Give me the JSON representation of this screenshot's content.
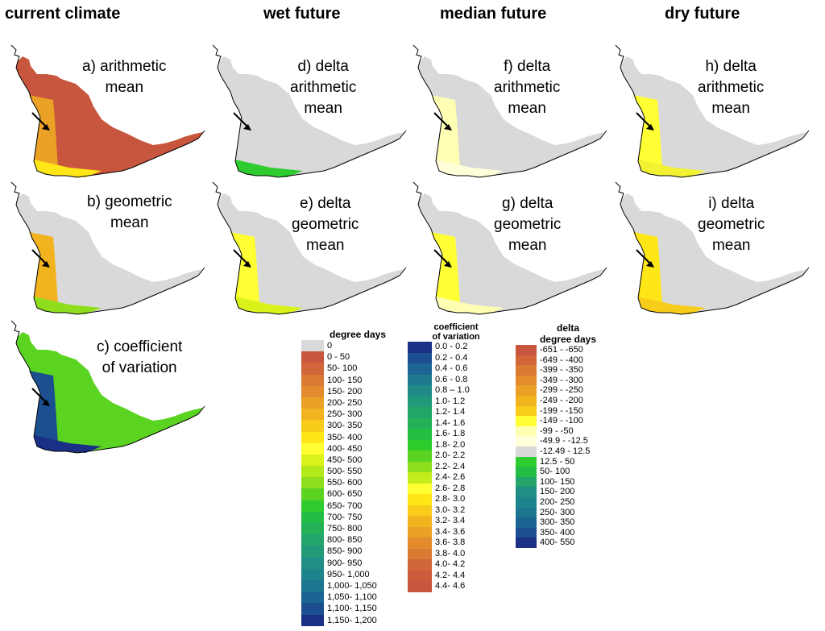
{
  "columns": [
    "current climate",
    "wet future",
    "median future",
    "dry future"
  ],
  "panels": [
    {
      "id": "a",
      "lines": [
        "a) arithmetic",
        "mean"
      ],
      "fill": "dd-full"
    },
    {
      "id": "b",
      "lines": [
        "b) geometric",
        "mean"
      ],
      "fill": "dd-west"
    },
    {
      "id": "c",
      "lines": [
        "c) coefficient",
        "of variation"
      ],
      "fill": "cv-full"
    },
    {
      "id": "d",
      "lines": [
        "d) delta",
        "arithmetic",
        "mean"
      ],
      "fill": "wet-arith"
    },
    {
      "id": "e",
      "lines": [
        "e) delta",
        "geometric",
        "mean"
      ],
      "fill": "wet-geo"
    },
    {
      "id": "f",
      "lines": [
        "f) delta",
        "arithmetic",
        "mean"
      ],
      "fill": "med-arith"
    },
    {
      "id": "g",
      "lines": [
        "g) delta",
        "geometric",
        "mean"
      ],
      "fill": "med-geo"
    },
    {
      "id": "h",
      "lines": [
        "h) delta",
        "arithmetic",
        "mean"
      ],
      "fill": "dry-arith"
    },
    {
      "id": "i",
      "lines": [
        "i) delta",
        "geometric",
        "mean"
      ],
      "fill": "dry-geo"
    }
  ],
  "legend_degree_days": {
    "title": [
      "degree days"
    ],
    "items": [
      {
        "label": "0",
        "color": "#d9d9d9"
      },
      {
        "label": "0 - 50",
        "color": "#c8553d"
      },
      {
        "label": "50- 100",
        "color": "#d0663a"
      },
      {
        "label": "100- 150",
        "color": "#db7a33"
      },
      {
        "label": "150- 200",
        "color": "#e38b2d"
      },
      {
        "label": "200- 250",
        "color": "#eba026"
      },
      {
        "label": "250- 300",
        "color": "#f2b41e"
      },
      {
        "label": "300- 350",
        "color": "#f8cc1a"
      },
      {
        "label": "350- 400",
        "color": "#ffe617"
      },
      {
        "label": "400- 450",
        "color": "#ffff33"
      },
      {
        "label": "450- 500",
        "color": "#d9f21a"
      },
      {
        "label": "500- 550",
        "color": "#b3e81c"
      },
      {
        "label": "550- 600",
        "color": "#8ede1e"
      },
      {
        "label": "600- 650",
        "color": "#5ad421"
      },
      {
        "label": "650- 700",
        "color": "#2fcc2f"
      },
      {
        "label": "700- 750",
        "color": "#23bd45"
      },
      {
        "label": "750- 800",
        "color": "#22b058"
      },
      {
        "label": "800- 850",
        "color": "#22a46a"
      },
      {
        "label": "850- 900",
        "color": "#219a7a"
      },
      {
        "label": "900- 950",
        "color": "#1f8f86"
      },
      {
        "label": "950- 1,000",
        "color": "#1e848b"
      },
      {
        "label": "1,000- 1,050",
        "color": "#1d7690"
      },
      {
        "label": "1,050- 1,100",
        "color": "#1c6592"
      },
      {
        "label": "1,100- 1,150",
        "color": "#1c4f8f"
      },
      {
        "label": "1,150- 1,200",
        "color": "#1a2f86"
      }
    ]
  },
  "legend_cv": {
    "title": [
      "coefficient",
      "of variation"
    ],
    "items": [
      {
        "label": "0.0 - 0.2",
        "color": "#1a2f86"
      },
      {
        "label": "0.2 - 0.4",
        "color": "#1c4f8f"
      },
      {
        "label": "0.4 - 0.6",
        "color": "#1d6592"
      },
      {
        "label": "0.6 - 0.8",
        "color": "#1e7a8e"
      },
      {
        "label": "0.8 – 1.0",
        "color": "#1f8a86"
      },
      {
        "label": "1.0- 1.2",
        "color": "#209a78"
      },
      {
        "label": "1.2- 1.4",
        "color": "#21a668"
      },
      {
        "label": "1.4- 1.6",
        "color": "#22b255"
      },
      {
        "label": "1.6- 1.8",
        "color": "#24bf41"
      },
      {
        "label": "1.8- 2.0",
        "color": "#2dcc2d"
      },
      {
        "label": "2.0- 2.2",
        "color": "#5ad421"
      },
      {
        "label": "2.2- 2.4",
        "color": "#8ede1e"
      },
      {
        "label": "2.4- 2.6",
        "color": "#c4ec1a"
      },
      {
        "label": "2.6- 2.8",
        "color": "#ffff33"
      },
      {
        "label": "2.8- 3.0",
        "color": "#ffe617"
      },
      {
        "label": "3.0- 3.2",
        "color": "#f8cc1a"
      },
      {
        "label": "3.2- 3.4",
        "color": "#f2b41e"
      },
      {
        "label": "3.4- 3.6",
        "color": "#eba026"
      },
      {
        "label": "3.6- 3.8",
        "color": "#e38b2d"
      },
      {
        "label": "3.8- 4.0",
        "color": "#db7a33"
      },
      {
        "label": "4.0- 4.2",
        "color": "#d0663a"
      },
      {
        "label": "4.2- 4.4",
        "color": "#cc5a3c"
      },
      {
        "label": "4.4- 4.6",
        "color": "#c8553d"
      }
    ]
  },
  "legend_delta": {
    "title": [
      "delta",
      "degree days"
    ],
    "items": [
      {
        "label": "-651 - -650",
        "color": "#c8553d"
      },
      {
        "label": "-649 - -400",
        "color": "#d0663a"
      },
      {
        "label": "-399 - -350",
        "color": "#db7a33"
      },
      {
        "label": "-349 - -300",
        "color": "#e38b2d"
      },
      {
        "label": "-299 - -250",
        "color": "#eba026"
      },
      {
        "label": "-249 - -200",
        "color": "#f2b41e"
      },
      {
        "label": "-199 - -150",
        "color": "#f8cc1a"
      },
      {
        "label": "-149 - -100",
        "color": "#ffff33"
      },
      {
        "label": "-99 - -50",
        "color": "#ffffb3"
      },
      {
        "label": "-49.9 - -12.5",
        "color": "#ffffd9"
      },
      {
        "label": "-12.49 - 12.5",
        "color": "#d9d9d9"
      },
      {
        "label": "12.5 - 50",
        "color": "#2fcc2f"
      },
      {
        "label": "50- 100",
        "color": "#23bd45"
      },
      {
        "label": "100- 150",
        "color": "#22a46a"
      },
      {
        "label": "150- 200",
        "color": "#1f8f86"
      },
      {
        "label": "200- 250",
        "color": "#1e848b"
      },
      {
        "label": "250- 300",
        "color": "#1d7690"
      },
      {
        "label": "300- 350",
        "color": "#1c6592"
      },
      {
        "label": "350- 400",
        "color": "#1c4f8f"
      },
      {
        "label": "400- 550",
        "color": "#1a2f86"
      }
    ]
  }
}
